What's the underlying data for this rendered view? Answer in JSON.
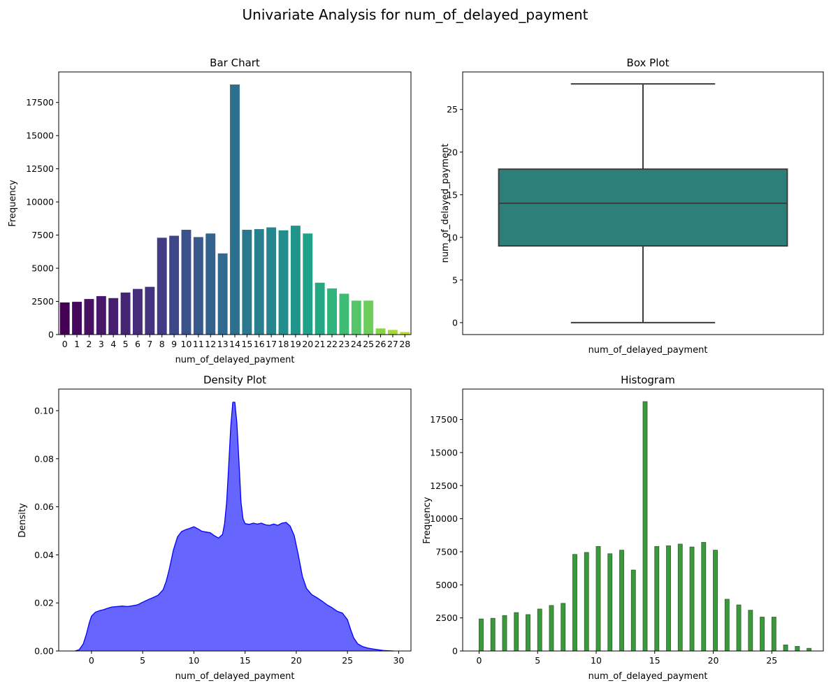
{
  "suptitle": "Univariate Analysis for num_of_delayed_payment",
  "chart_data": [
    {
      "type": "bar",
      "title": "Bar Chart",
      "xlabel": "num_of_delayed_payment",
      "ylabel": "Frequency",
      "categories": [
        "0",
        "1",
        "2",
        "3",
        "4",
        "5",
        "6",
        "7",
        "8",
        "9",
        "10",
        "11",
        "12",
        "13",
        "14",
        "15",
        "16",
        "17",
        "18",
        "19",
        "20",
        "21",
        "22",
        "23",
        "24",
        "25",
        "26",
        "27",
        "28"
      ],
      "values": [
        2420,
        2470,
        2680,
        2900,
        2750,
        3170,
        3440,
        3600,
        7300,
        7450,
        7900,
        7350,
        7620,
        6120,
        18850,
        7900,
        7950,
        8080,
        7860,
        8210,
        7620,
        3910,
        3480,
        3080,
        2560,
        2560,
        460,
        350,
        200
      ],
      "ylim": [
        0,
        19800
      ],
      "yticks": [
        "0",
        "2500",
        "5000",
        "7500",
        "10000",
        "12500",
        "15000",
        "17500"
      ],
      "palette": "viridis",
      "colors": [
        "#440154",
        "#46085c",
        "#471063",
        "#481769",
        "#481f70",
        "#472575",
        "#462c7b",
        "#44337f",
        "#423a84",
        "#3f4788",
        "#3b518b",
        "#37598c",
        "#33638d",
        "#306a8e",
        "#2d718e",
        "#2a788e",
        "#27808e",
        "#25868e",
        "#228d8d",
        "#1f958b",
        "#1fa088",
        "#24a884",
        "#2fb47c",
        "#3fbc73",
        "#54c568",
        "#6ccd5a",
        "#86d549",
        "#a2da37",
        "#c2df23"
      ]
    },
    {
      "type": "box",
      "title": "Box Plot",
      "xlabel": "num_of_delayed_payment",
      "ylabel": "num_of_delayed_payment",
      "min": 0,
      "q1": 9,
      "median": 14,
      "q3": 18,
      "max": 28,
      "ylim": [
        -1.4,
        29.4
      ],
      "yticks": [
        "0",
        "5",
        "10",
        "15",
        "20",
        "25"
      ],
      "color": "#2d807a"
    },
    {
      "type": "area",
      "title": "Density Plot",
      "xlabel": "num_of_delayed_payment",
      "ylabel": "Density",
      "x": [
        -1.6,
        -1.2,
        -0.8,
        -0.5,
        -0.2,
        0,
        0.4,
        0.8,
        1.2,
        1.6,
        2.0,
        2.5,
        3.0,
        3.5,
        4.0,
        4.5,
        5.0,
        5.5,
        6.0,
        6.5,
        7.0,
        7.3,
        7.6,
        8.0,
        8.4,
        8.8,
        9.2,
        9.6,
        10.0,
        10.4,
        10.8,
        11.2,
        11.6,
        12.0,
        12.4,
        12.8,
        13.0,
        13.2,
        13.4,
        13.6,
        13.8,
        14.0,
        14.2,
        14.4,
        14.6,
        14.8,
        15.0,
        15.4,
        15.8,
        16.2,
        16.6,
        17.0,
        17.4,
        17.8,
        18.2,
        18.6,
        19.0,
        19.4,
        19.8,
        20.2,
        20.6,
        21.0,
        21.5,
        22.0,
        22.5,
        23.0,
        23.5,
        24.0,
        24.5,
        25.0,
        25.3,
        25.6,
        26.0,
        26.5,
        27.0,
        27.5,
        28.0,
        28.5,
        29.0,
        29.5
      ],
      "y": [
        0,
        0.0005,
        0.003,
        0.007,
        0.012,
        0.0145,
        0.0162,
        0.0168,
        0.0172,
        0.0178,
        0.0183,
        0.0185,
        0.0187,
        0.0185,
        0.0188,
        0.0192,
        0.0203,
        0.0213,
        0.0222,
        0.0232,
        0.0255,
        0.029,
        0.034,
        0.042,
        0.0475,
        0.0497,
        0.0505,
        0.051,
        0.0517,
        0.0508,
        0.0498,
        0.0495,
        0.0492,
        0.048,
        0.047,
        0.0485,
        0.053,
        0.062,
        0.077,
        0.093,
        0.1035,
        0.1035,
        0.095,
        0.079,
        0.062,
        0.055,
        0.053,
        0.0527,
        0.0532,
        0.0528,
        0.0532,
        0.0525,
        0.0523,
        0.0528,
        0.0523,
        0.0532,
        0.0535,
        0.052,
        0.048,
        0.04,
        0.031,
        0.026,
        0.0235,
        0.0222,
        0.0208,
        0.0192,
        0.018,
        0.0165,
        0.0158,
        0.013,
        0.009,
        0.0055,
        0.003,
        0.0018,
        0.0012,
        0.0008,
        0.0005,
        0.0002,
        0.0001,
        0
      ],
      "xlim": [
        -3.2,
        31.2
      ],
      "ylim": [
        0,
        0.109
      ],
      "xticks": [
        "0",
        "5",
        "10",
        "15",
        "20",
        "25",
        "30"
      ],
      "yticks": [
        "0.00",
        "0.02",
        "0.04",
        "0.06",
        "0.08",
        "0.10"
      ],
      "color": "#0000ff",
      "fill": "#6666ff"
    },
    {
      "type": "bar",
      "title": "Histogram",
      "xlabel": "num_of_delayed_payment",
      "ylabel": "Frequency",
      "categories": [
        "0",
        "1",
        "2",
        "3",
        "4",
        "5",
        "6",
        "7",
        "8",
        "9",
        "10",
        "11",
        "12",
        "13",
        "14",
        "15",
        "16",
        "17",
        "18",
        "19",
        "20",
        "21",
        "22",
        "23",
        "24",
        "25",
        "26",
        "27",
        "28"
      ],
      "values": [
        2420,
        2470,
        2680,
        2900,
        2750,
        3170,
        3440,
        3600,
        7300,
        7450,
        7900,
        7350,
        7620,
        6120,
        18850,
        7900,
        7950,
        8080,
        7860,
        8210,
        7620,
        3910,
        3480,
        3080,
        2560,
        2560,
        460,
        350,
        200
      ],
      "xlim": [
        -1.4,
        29.4
      ],
      "ylim": [
        0,
        19800
      ],
      "xticks": [
        "0",
        "5",
        "10",
        "15",
        "20",
        "25"
      ],
      "yticks": [
        "0",
        "2500",
        "5000",
        "7500",
        "10000",
        "12500",
        "15000",
        "17500"
      ],
      "color": "#3a9a3a",
      "edge": "#2e5e2e"
    }
  ]
}
